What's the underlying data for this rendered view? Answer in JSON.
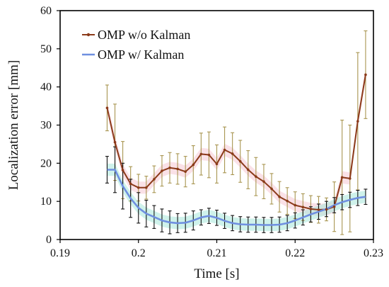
{
  "chart_data": {
    "type": "line",
    "xlabel": "Time [s]",
    "ylabel": "Localization error [mm]",
    "xlim": [
      0.19,
      0.23
    ],
    "ylim": [
      0,
      60
    ],
    "xticks": [
      0.19,
      0.2,
      0.21,
      0.22,
      0.23
    ],
    "xtick_labels": [
      "0.19",
      "0.2",
      "0.21",
      "0.22",
      "0.23"
    ],
    "yticks": [
      0,
      10,
      20,
      30,
      40,
      50,
      60
    ],
    "yticks_labels": [
      "0",
      "10",
      "20",
      "30",
      "40",
      "50",
      "60"
    ],
    "grid": false,
    "legend_position": "top-left",
    "series": [
      {
        "name": "OMP w/o Kalman",
        "color": "#8B3A1A",
        "error_color": "#A89550",
        "band_color": "#F6C8D4",
        "markers": true,
        "x": [
          0.196,
          0.197,
          0.198,
          0.199,
          0.2,
          0.201,
          0.202,
          0.203,
          0.204,
          0.205,
          0.206,
          0.207,
          0.208,
          0.209,
          0.21,
          0.211,
          0.212,
          0.213,
          0.214,
          0.215,
          0.216,
          0.217,
          0.218,
          0.219,
          0.22,
          0.221,
          0.222,
          0.223,
          0.224,
          0.225,
          0.226,
          0.227,
          0.228,
          0.229
        ],
        "y": [
          34.5,
          25.5,
          18.2,
          14.6,
          13.6,
          13.6,
          15.8,
          18.0,
          18.8,
          18.5,
          17.8,
          19.6,
          22.4,
          22.2,
          19.8,
          23.5,
          22.5,
          20.5,
          18.3,
          16.5,
          15.2,
          13.3,
          11.2,
          10.1,
          9.0,
          8.5,
          8.0,
          7.8,
          7.9,
          8.6,
          16.3,
          16.0,
          31.0,
          43.2
        ],
        "err": [
          6.0,
          10.0,
          7.5,
          4.5,
          3.5,
          3.0,
          3.5,
          4.0,
          4.0,
          4.0,
          4.0,
          5.0,
          5.5,
          6.0,
          5.0,
          6.0,
          5.5,
          5.5,
          5.0,
          5.0,
          4.5,
          4.0,
          4.0,
          3.5,
          3.5,
          3.5,
          3.5,
          3.5,
          3.0,
          6.5,
          15.0,
          14.0,
          18.0,
          11.5
        ]
      },
      {
        "name": "OMP w/ Kalman",
        "color": "#6F8FE0",
        "error_color": "#111111",
        "band_color": "#A8E7DA",
        "markers": false,
        "x": [
          0.196,
          0.197,
          0.198,
          0.199,
          0.2,
          0.201,
          0.202,
          0.203,
          0.204,
          0.205,
          0.206,
          0.207,
          0.208,
          0.209,
          0.21,
          0.211,
          0.212,
          0.213,
          0.214,
          0.215,
          0.216,
          0.217,
          0.218,
          0.219,
          0.22,
          0.221,
          0.222,
          0.223,
          0.224,
          0.225,
          0.226,
          0.227,
          0.228,
          0.229
        ],
        "y": [
          18.3,
          18.3,
          14.0,
          10.8,
          8.3,
          6.8,
          5.9,
          5.0,
          4.5,
          4.3,
          4.4,
          5.0,
          5.8,
          6.2,
          5.7,
          4.9,
          4.3,
          4.0,
          3.9,
          3.9,
          3.8,
          3.8,
          3.9,
          4.3,
          5.0,
          5.8,
          6.6,
          7.3,
          8.0,
          9.0,
          9.8,
          10.4,
          10.9,
          11.2
        ],
        "err": [
          3.5,
          6.0,
          6.0,
          5.0,
          4.0,
          3.5,
          3.0,
          3.0,
          3.0,
          2.5,
          2.5,
          2.5,
          2.0,
          2.0,
          2.0,
          2.0,
          2.0,
          2.0,
          2.0,
          2.0,
          2.0,
          2.0,
          2.0,
          2.0,
          2.0,
          2.0,
          2.0,
          2.0,
          2.0,
          2.0,
          2.0,
          2.0,
          2.0,
          2.0
        ]
      }
    ]
  }
}
